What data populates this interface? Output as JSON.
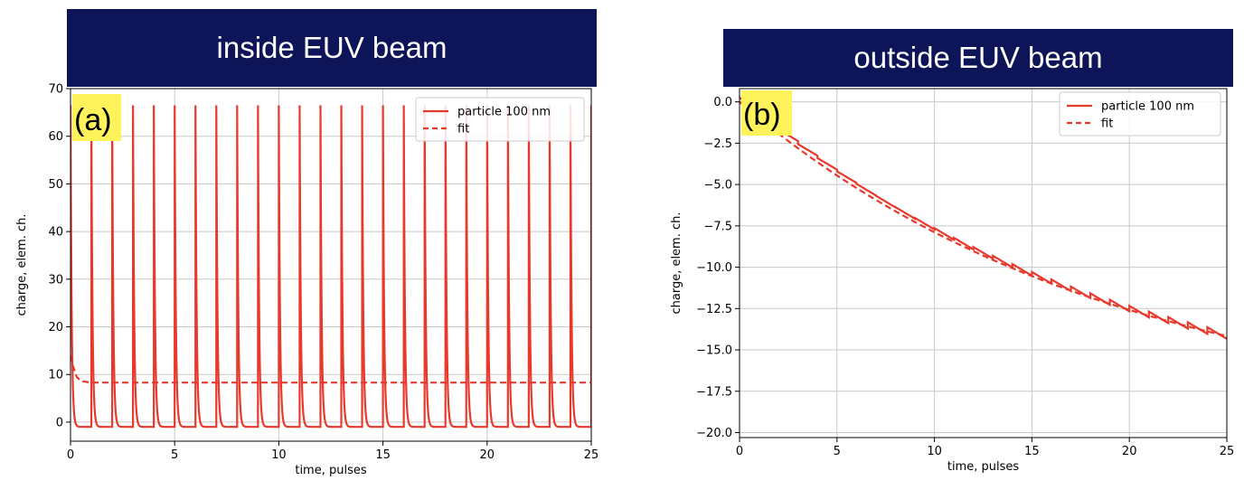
{
  "colors": {
    "banner": "#0d1457",
    "series": "#e8392d",
    "highlight": "#fff35c",
    "grid": "#c8c8c8"
  },
  "banners": [
    "inside EUV beam",
    "outside EUV beam"
  ],
  "chart_data": [
    {
      "type": "line",
      "panel_label": "(a)",
      "title": "inside EUV beam",
      "xlabel": "time, pulses",
      "ylabel": "charge, elem. ch.",
      "xlim": [
        0,
        25
      ],
      "ylim": [
        -4,
        70
      ],
      "xticks": [
        0,
        5,
        10,
        15,
        20,
        25
      ],
      "yticks": [
        0,
        10,
        20,
        30,
        40,
        50,
        60,
        70
      ],
      "grid": true,
      "legend": {
        "placement": "top-right",
        "entries": [
          "particle 100 nm",
          "fit"
        ]
      },
      "series": [
        {
          "name": "particle 100 nm",
          "style": "solid",
          "pulse_period": 1,
          "peak": 66.5,
          "baseline": -1,
          "start_value": 66.5,
          "x_end": 25
        },
        {
          "name": "fit",
          "style": "dashed",
          "x": [
            0,
            0.1,
            0.3,
            0.5,
            1,
            25
          ],
          "values": [
            14,
            12,
            9.5,
            8.6,
            8.3,
            8.3
          ]
        }
      ]
    },
    {
      "type": "line",
      "panel_label": "(b)",
      "title": "outside EUV beam",
      "xlabel": "time, pulses",
      "ylabel": "charge, elem. ch.",
      "xlim": [
        0,
        25
      ],
      "ylim": [
        -20.3,
        0.8
      ],
      "xticks": [
        0,
        5,
        10,
        15,
        20,
        25
      ],
      "yticks": [
        0.0,
        -2.5,
        -5.0,
        -7.5,
        -10.0,
        -12.5,
        -15.0,
        -17.5,
        -20.0
      ],
      "ytick_labels": [
        "0.0",
        "−2.5",
        "−5.0",
        "−7.5",
        "−10.0",
        "−12.5",
        "−15.0",
        "−17.5",
        "−20.0"
      ],
      "grid": true,
      "legend": {
        "placement": "top-right",
        "entries": [
          "particle 100 nm",
          "fit"
        ]
      },
      "series": [
        {
          "name": "particle 100 nm",
          "style": "solid",
          "pulse_period": 1,
          "decay_amplitude": 19.5,
          "decay_tau": 19.3,
          "step": 0.7,
          "x_end": 25
        },
        {
          "name": "fit",
          "style": "dashed",
          "fit_amplitude": 19.5,
          "fit_tau": 19.3,
          "x_end": 25
        }
      ]
    }
  ]
}
